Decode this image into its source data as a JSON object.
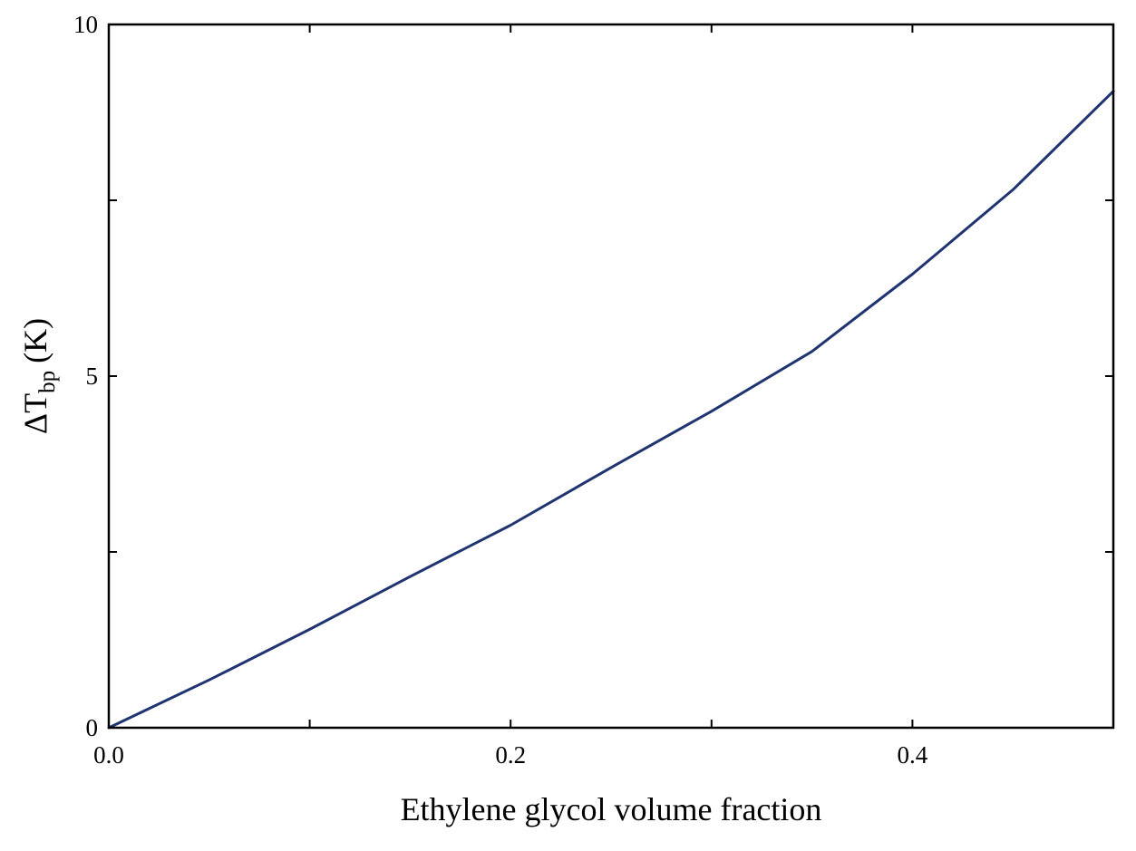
{
  "chart_data": {
    "type": "line",
    "title": "",
    "xlabel": "Ethylene glycol volume fraction",
    "ylabel": {
      "symbol": "ΔT",
      "subscript": "bp",
      "unit": "(K)"
    },
    "xlim": [
      0,
      0.5
    ],
    "ylim": [
      0,
      10
    ],
    "x_ticks": [
      0.0,
      0.1,
      0.2,
      0.3,
      0.4,
      0.5
    ],
    "x_tick_labels": [
      "0.0",
      "",
      "0.2",
      "",
      "0.4",
      ""
    ],
    "y_ticks": [
      0,
      2.5,
      5,
      7.5,
      10
    ],
    "y_tick_labels": [
      "0",
      "",
      "5",
      "",
      "10"
    ],
    "grid": false,
    "legend": "none",
    "line_color": "#1f3470",
    "series": [
      {
        "x": [
          0.0,
          0.05,
          0.1,
          0.15,
          0.2,
          0.25,
          0.3,
          0.35,
          0.4,
          0.45,
          0.5
        ],
        "y": [
          0.0,
          0.68,
          1.4,
          2.15,
          2.88,
          3.7,
          4.5,
          5.35,
          6.45,
          7.65,
          9.05
        ]
      }
    ]
  }
}
